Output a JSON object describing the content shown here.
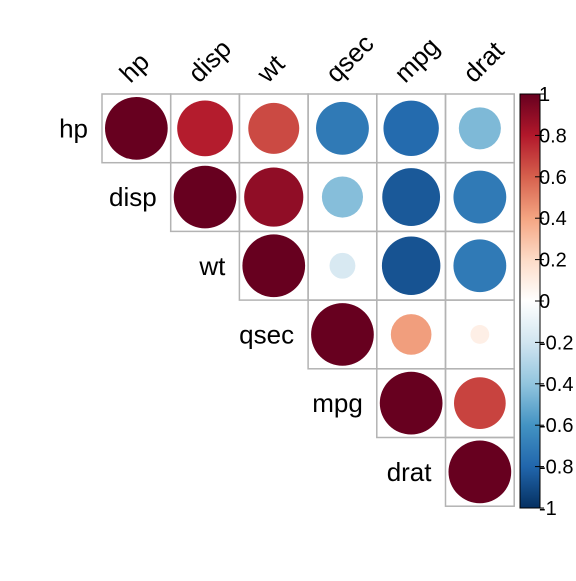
{
  "chart_data": {
    "type": "heatmap",
    "subtype": "correlogram-upper-circles",
    "title": "",
    "variables": [
      "hp",
      "disp",
      "wt",
      "qsec",
      "mpg",
      "drat"
    ],
    "matrix": [
      [
        1.0,
        0.79,
        0.66,
        -0.71,
        -0.78,
        -0.45
      ],
      [
        0.79,
        1.0,
        0.89,
        -0.43,
        -0.85,
        -0.71
      ],
      [
        0.66,
        0.89,
        1.0,
        -0.17,
        -0.87,
        -0.71
      ],
      [
        -0.71,
        -0.43,
        -0.17,
        1.0,
        0.42,
        0.09
      ],
      [
        -0.78,
        -0.85,
        -0.87,
        0.42,
        1.0,
        0.68
      ],
      [
        -0.45,
        -0.71,
        -0.71,
        0.09,
        0.68,
        1.0
      ]
    ],
    "triangle": "upper",
    "value_range": [
      -1,
      1
    ],
    "colorbar": {
      "ticks": [
        1,
        0.8,
        0.6,
        0.4,
        0.2,
        0,
        -0.2,
        -0.4,
        -0.6,
        -0.8,
        -1
      ],
      "tick_labels": [
        "1",
        "0.8",
        "0.6",
        "0.4",
        "0.2",
        "0",
        "-0.2",
        "-0.4",
        "-0.6",
        "-0.8",
        "-1"
      ],
      "placement": "right"
    },
    "colors": {
      "palette": [
        "#053061",
        "#2166ac",
        "#4393c3",
        "#92c5de",
        "#d1e5f0",
        "#ffffff",
        "#fddbc7",
        "#f4a582",
        "#d6604d",
        "#b2182b",
        "#67001f"
      ],
      "grid": "#b3b3b3"
    }
  }
}
